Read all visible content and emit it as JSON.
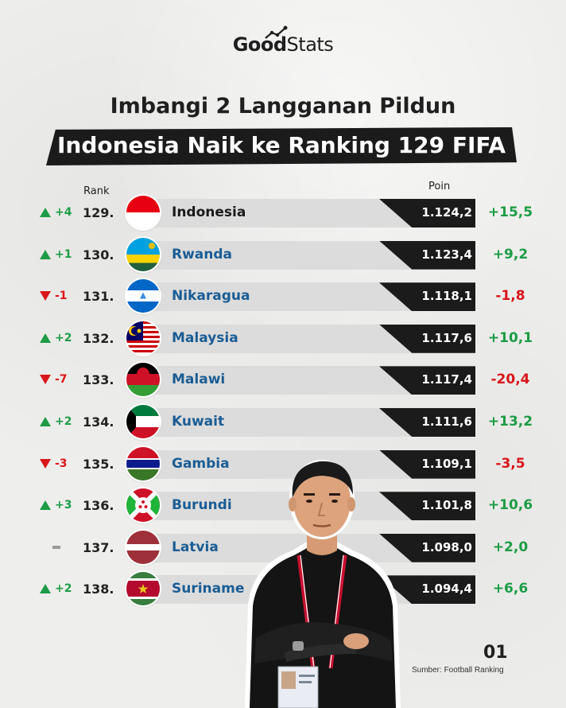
{
  "brand": {
    "good": "Good",
    "stats": "Stats"
  },
  "title_line1": "Imbangi 2 Langganan Pildun",
  "title_line2": "Indonesia Naik ke Ranking 129 FIFA",
  "headers": {
    "rank": "Rank",
    "points": "Poin"
  },
  "colors": {
    "up": "#1d9c45",
    "down": "#d8161b",
    "country": "#1b5d94",
    "dark": "#1b1b1b"
  },
  "rows": [
    {
      "change": "+4",
      "dir": "up",
      "rank": "129.",
      "country": "Indonesia",
      "flag": "indonesia",
      "points": "1.124,2",
      "delta": "+15,5"
    },
    {
      "change": "+1",
      "dir": "up",
      "rank": "130.",
      "country": "Rwanda",
      "flag": "rwanda",
      "points": "1.123,4",
      "delta": "+9,2"
    },
    {
      "change": "-1",
      "dir": "down",
      "rank": "131.",
      "country": "Nikaragua",
      "flag": "nicaragua",
      "points": "1.118,1",
      "delta": "-1,8"
    },
    {
      "change": "+2",
      "dir": "up",
      "rank": "132.",
      "country": "Malaysia",
      "flag": "malaysia",
      "points": "1.117,6",
      "delta": "+10,1"
    },
    {
      "change": "-7",
      "dir": "down",
      "rank": "133.",
      "country": "Malawi",
      "flag": "malawi",
      "points": "1.117,4",
      "delta": "-20,4"
    },
    {
      "change": "+2",
      "dir": "up",
      "rank": "134.",
      "country": "Kuwait",
      "flag": "kuwait",
      "points": "1.111,6",
      "delta": "+13,2"
    },
    {
      "change": "-3",
      "dir": "down",
      "rank": "135.",
      "country": "Gambia",
      "flag": "gambia",
      "points": "1.109,1",
      "delta": "-3,5"
    },
    {
      "change": "+3",
      "dir": "up",
      "rank": "136.",
      "country": "Burundi",
      "flag": "burundi",
      "points": "1.101,8",
      "delta": "+10,6"
    },
    {
      "change": "",
      "dir": "same",
      "rank": "137.",
      "country": "Latvia",
      "flag": "latvia",
      "points": "1.098,0",
      "delta": "+2,0"
    },
    {
      "change": "+2",
      "dir": "up",
      "rank": "138.",
      "country": "Suriname",
      "flag": "suriname",
      "points": "1.094,4",
      "delta": "+6,6"
    }
  ],
  "footer": {
    "page": "01",
    "source": "Sumber: Football Ranking"
  }
}
